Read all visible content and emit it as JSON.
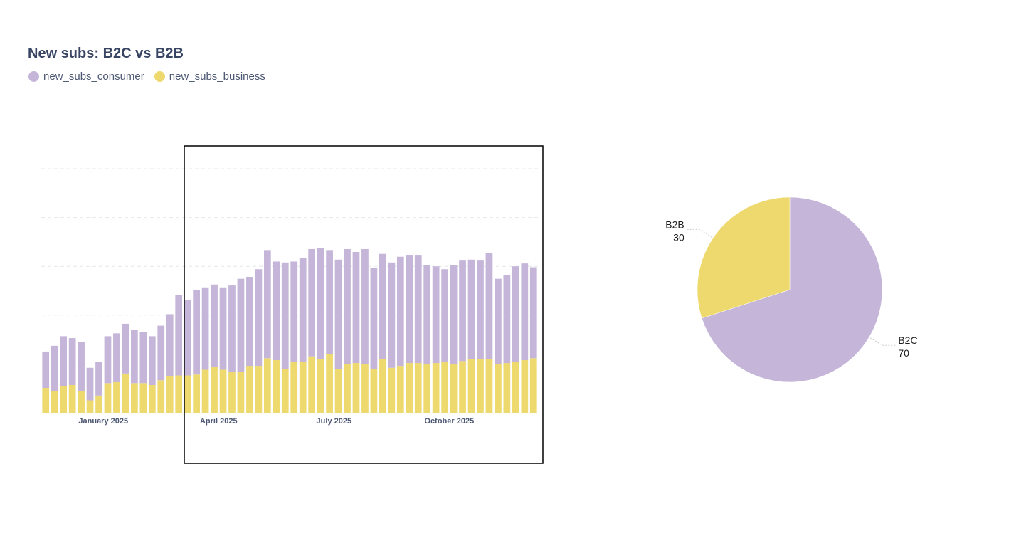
{
  "title": "New subs: B2C vs B2B",
  "colors": {
    "consumer": "#c4b5d9",
    "business": "#eed96f",
    "grid": "#e6e7ea"
  },
  "legend": [
    {
      "label": "new_subs_consumer",
      "color": "#c4b5d9"
    },
    {
      "label": "new_subs_business",
      "color": "#eed96f"
    }
  ],
  "chart_data": [
    {
      "type": "bar",
      "stacked": true,
      "title": "New subs: B2C vs B2B",
      "x_tick_labels": [
        "January 2025",
        "April 2025",
        "July 2025",
        "October 2025"
      ],
      "x_tick_bar_index": [
        6.5,
        19.5,
        32.5,
        45.5
      ],
      "grid": true,
      "series": [
        {
          "name": "new_subs_consumer",
          "values": [
            38,
            47,
            52,
            49,
            51,
            34,
            35,
            49,
            51,
            52,
            56,
            53,
            51,
            57,
            65,
            84,
            79,
            88,
            86,
            86,
            86,
            90,
            97,
            93,
            101,
            113,
            103,
            111,
            105,
            109,
            112,
            116,
            109,
            114,
            120,
            116,
            120,
            105,
            110,
            110,
            114,
            113,
            113,
            103,
            101,
            97,
            103,
            105,
            104,
            103,
            111,
            89,
            92,
            100,
            101,
            95
          ]
        },
        {
          "name": "new_subs_business",
          "values": [
            26,
            23,
            28,
            29,
            23,
            13,
            18,
            31,
            32,
            41,
            31,
            31,
            29,
            34,
            38,
            39,
            39,
            40,
            45,
            48,
            45,
            43,
            43,
            49,
            49,
            57,
            55,
            46,
            53,
            53,
            59,
            56,
            61,
            46,
            51,
            52,
            51,
            46,
            56,
            47,
            49,
            52,
            52,
            51,
            52,
            53,
            51,
            54,
            56,
            56,
            56,
            51,
            52,
            53,
            55,
            57
          ]
        }
      ],
      "ylim": [
        0,
        255
      ]
    },
    {
      "type": "pie",
      "slices": [
        {
          "label": "B2C",
          "value": 70,
          "color": "#c4b5d9"
        },
        {
          "label": "B2B",
          "value": 30,
          "color": "#eed96f"
        }
      ]
    }
  ]
}
